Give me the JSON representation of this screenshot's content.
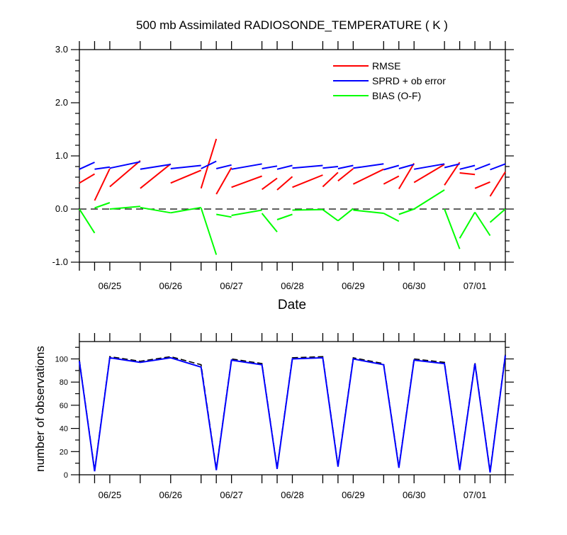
{
  "chart_data": [
    {
      "type": "line",
      "title": "500 mb Assimilated RADIOSONDE_TEMPERATURE ( K )",
      "xlabel": "Date",
      "ylabel": "",
      "x_ticks": [
        "06/25",
        "06/26",
        "06/27",
        "06/28",
        "06/29",
        "06/30",
        "07/01"
      ],
      "y_ticks": [
        "-1.0",
        "0.0",
        "1.0",
        "2.0",
        "3.0"
      ],
      "ylim": [
        -1.0,
        3.0
      ],
      "xlim": [
        0,
        14
      ],
      "x_unit": "12-hourly cycle",
      "legend_position": "top-right",
      "reference_line": {
        "y": 0.0,
        "style": "dashed",
        "color": "#000000"
      },
      "series": [
        {
          "name": "RMSE",
          "color": "#ff0000",
          "segments": [
            [
              [
                0,
                0.49
              ],
              [
                0.5,
                0.66
              ]
            ],
            [
              [
                0.5,
                0.16
              ],
              [
                1,
                0.76
              ]
            ],
            [
              [
                1,
                0.42
              ],
              [
                2,
                0.91
              ]
            ],
            [
              [
                2,
                0.39
              ],
              [
                3,
                0.85
              ]
            ],
            [
              [
                3,
                0.49
              ],
              [
                4,
                0.73
              ]
            ],
            [
              [
                4,
                0.39
              ],
              [
                4.5,
                1.32
              ]
            ],
            [
              [
                4.5,
                0.28
              ],
              [
                5,
                0.78
              ]
            ],
            [
              [
                5,
                0.41
              ],
              [
                6,
                0.62
              ]
            ],
            [
              [
                6,
                0.37
              ],
              [
                6.5,
                0.58
              ]
            ],
            [
              [
                6.5,
                0.36
              ],
              [
                7,
                0.61
              ]
            ],
            [
              [
                7,
                0.41
              ],
              [
                8,
                0.64
              ]
            ],
            [
              [
                8,
                0.42
              ],
              [
                8.5,
                0.69
              ]
            ],
            [
              [
                8.5,
                0.53
              ],
              [
                9,
                0.76
              ]
            ],
            [
              [
                9,
                0.47
              ],
              [
                10,
                0.75
              ]
            ],
            [
              [
                10,
                0.47
              ],
              [
                10.5,
                0.62
              ]
            ],
            [
              [
                10.5,
                0.38
              ],
              [
                11,
                0.86
              ]
            ],
            [
              [
                11,
                0.5
              ],
              [
                12,
                0.84
              ]
            ],
            [
              [
                12,
                0.45
              ],
              [
                12.5,
                0.88
              ]
            ],
            [
              [
                12.5,
                0.68
              ],
              [
                13,
                0.65
              ]
            ],
            [
              [
                13,
                0.39
              ],
              [
                13.5,
                0.51
              ]
            ],
            [
              [
                13.5,
                0.24
              ],
              [
                14,
                0.7
              ]
            ]
          ]
        },
        {
          "name": "SPRD + ob error",
          "color": "#0000ff",
          "segments": [
            [
              [
                0,
                0.75
              ],
              [
                0.5,
                0.88
              ]
            ],
            [
              [
                0.5,
                0.75
              ],
              [
                1,
                0.79
              ]
            ],
            [
              [
                1,
                0.77
              ],
              [
                2,
                0.89
              ]
            ],
            [
              [
                2,
                0.75
              ],
              [
                3,
                0.84
              ]
            ],
            [
              [
                3,
                0.76
              ],
              [
                4,
                0.82
              ]
            ],
            [
              [
                4,
                0.76
              ],
              [
                4.5,
                0.9
              ]
            ],
            [
              [
                4.5,
                0.76
              ],
              [
                5,
                0.83
              ]
            ],
            [
              [
                5,
                0.75
              ],
              [
                6,
                0.85
              ]
            ],
            [
              [
                6,
                0.76
              ],
              [
                6.5,
                0.81
              ]
            ],
            [
              [
                6.5,
                0.75
              ],
              [
                7,
                0.82
              ]
            ],
            [
              [
                7,
                0.77
              ],
              [
                8,
                0.82
              ]
            ],
            [
              [
                8,
                0.77
              ],
              [
                8.5,
                0.8
              ]
            ],
            [
              [
                8.5,
                0.76
              ],
              [
                9,
                0.82
              ]
            ],
            [
              [
                9,
                0.77
              ],
              [
                10,
                0.85
              ]
            ],
            [
              [
                10,
                0.74
              ],
              [
                10.5,
                0.82
              ]
            ],
            [
              [
                10.5,
                0.76
              ],
              [
                11,
                0.84
              ]
            ],
            [
              [
                11,
                0.75
              ],
              [
                12,
                0.85
              ]
            ],
            [
              [
                12,
                0.78
              ],
              [
                12.5,
                0.85
              ]
            ],
            [
              [
                12.5,
                0.75
              ],
              [
                13,
                0.82
              ]
            ],
            [
              [
                13,
                0.74
              ],
              [
                13.5,
                0.85
              ]
            ],
            [
              [
                13.5,
                0.74
              ],
              [
                14,
                0.85
              ]
            ]
          ]
        },
        {
          "name": "BIAS (O-F)",
          "color": "#00ff00",
          "segments": [
            [
              [
                0,
                0.0
              ],
              [
                0.5,
                -0.45
              ]
            ],
            [
              [
                0.5,
                0.02
              ],
              [
                1,
                0.12
              ]
            ],
            [
              [
                1,
                0.0
              ],
              [
                2,
                0.05
              ]
            ],
            [
              [
                2,
                0.03
              ],
              [
                3,
                -0.07
              ]
            ],
            [
              [
                3,
                -0.07
              ],
              [
                4,
                0.03
              ]
            ],
            [
              [
                4,
                0.02
              ],
              [
                4.5,
                -0.86
              ]
            ],
            [
              [
                4.5,
                -0.1
              ],
              [
                5,
                -0.15
              ]
            ],
            [
              [
                5,
                -0.12
              ],
              [
                6,
                -0.02
              ]
            ],
            [
              [
                6,
                -0.08
              ],
              [
                6.5,
                -0.43
              ]
            ],
            [
              [
                6.5,
                -0.2
              ],
              [
                7,
                -0.1
              ]
            ],
            [
              [
                7,
                -0.02
              ],
              [
                8,
                -0.01
              ]
            ],
            [
              [
                8,
                -0.01
              ],
              [
                8.5,
                -0.22
              ]
            ],
            [
              [
                8.5,
                -0.22
              ],
              [
                9,
                0.01
              ]
            ],
            [
              [
                9,
                -0.02
              ],
              [
                10,
                -0.08
              ]
            ],
            [
              [
                10,
                -0.08
              ],
              [
                10.5,
                -0.23
              ]
            ],
            [
              [
                10.5,
                -0.1
              ],
              [
                11,
                0.0
              ]
            ],
            [
              [
                11,
                0.0
              ],
              [
                12,
                0.36
              ]
            ],
            [
              [
                12,
                0.0
              ],
              [
                12.5,
                -0.75
              ]
            ],
            [
              [
                12.5,
                -0.55
              ],
              [
                13,
                -0.06
              ]
            ],
            [
              [
                13,
                -0.06
              ],
              [
                13.5,
                -0.5
              ]
            ],
            [
              [
                13.5,
                -0.25
              ],
              [
                14,
                0.0
              ]
            ]
          ]
        }
      ]
    },
    {
      "type": "line",
      "title": "",
      "xlabel": "",
      "ylabel": "number of observations",
      "x_ticks": [
        "06/25",
        "06/26",
        "06/27",
        "06/28",
        "06/29",
        "06/30",
        "07/01"
      ],
      "y_ticks": [
        "0",
        "20",
        "40",
        "60",
        "80",
        "100"
      ],
      "ylim": [
        0,
        115
      ],
      "xlim": [
        0,
        14
      ],
      "series": [
        {
          "name": "",
          "color": "#000000",
          "style": "dashed",
          "points": [
            [
              0,
              99
            ],
            [
              0.5,
              4
            ],
            [
              1,
              102
            ],
            [
              2,
              98
            ],
            [
              3,
              102
            ],
            [
              4,
              95
            ],
            [
              4.5,
              5
            ],
            [
              5,
              100
            ],
            [
              6,
              96
            ],
            [
              6.5,
              6
            ],
            [
              7,
              101
            ],
            [
              8,
              102
            ],
            [
              8.5,
              8
            ],
            [
              9,
              101
            ],
            [
              10,
              96
            ],
            [
              10.5,
              7
            ],
            [
              11,
              100
            ],
            [
              12,
              97
            ],
            [
              12.5,
              5
            ],
            [
              13,
              97
            ],
            [
              13.5,
              3
            ],
            [
              14,
              104
            ]
          ]
        },
        {
          "name": "",
          "color": "#0000ff",
          "style": "solid",
          "points": [
            [
              0,
              98
            ],
            [
              0.5,
              3
            ],
            [
              1,
              101
            ],
            [
              2,
              97
            ],
            [
              3,
              101
            ],
            [
              4,
              93
            ],
            [
              4.5,
              4
            ],
            [
              5,
              99
            ],
            [
              6,
              95
            ],
            [
              6.5,
              5
            ],
            [
              7,
              100
            ],
            [
              8,
              101
            ],
            [
              8.5,
              7
            ],
            [
              9,
              100
            ],
            [
              10,
              95
            ],
            [
              10.5,
              6
            ],
            [
              11,
              99
            ],
            [
              12,
              96
            ],
            [
              12.5,
              4
            ],
            [
              13,
              96
            ],
            [
              13.5,
              2
            ],
            [
              14,
              103
            ]
          ]
        }
      ]
    }
  ]
}
